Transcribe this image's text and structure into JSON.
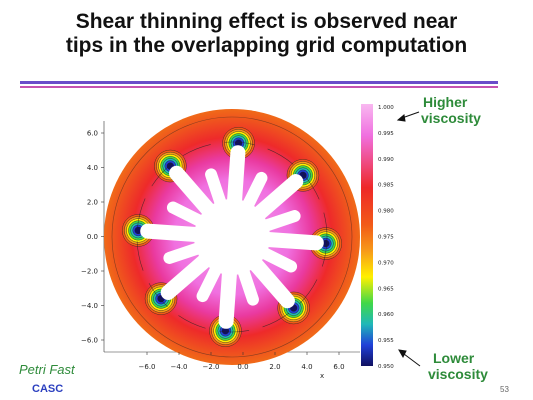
{
  "slide": {
    "title_line1": "Shear thinning effect is observed near",
    "title_line2": "tips in the overlapping grid computation",
    "annotation_high_line1": "Higher",
    "annotation_high_line2": "viscosity",
    "annotation_low_line1": "Lower",
    "annotation_low_line2": "viscosity",
    "author": "Petri Fast",
    "organization": "CASC",
    "page_number": "53"
  },
  "figure": {
    "xlabel": "x",
    "x_ticks": [
      "−6.0",
      "−4.0",
      "−2.0",
      "0.0",
      "2.0",
      "4.0",
      "6.0"
    ],
    "y_ticks": [
      "6.0",
      "4.0",
      "2.0",
      "0.0",
      "−2.0",
      "−4.0",
      "−6.0"
    ],
    "colorbar_ticks": [
      "1.000",
      "0.995",
      "0.990",
      "0.985",
      "0.980",
      "0.975",
      "0.970",
      "0.965",
      "0.960",
      "0.955",
      "0.950"
    ],
    "colormap": [
      "#f8b8f0",
      "#f070e0",
      "#ee2828",
      "#f25a18",
      "#f79a1a",
      "#fff000",
      "#40d848",
      "#20b8b8",
      "#2040d8",
      "#101060"
    ]
  },
  "colors": {
    "annotation_green": "#2e8b3a",
    "org_blue": "#2b3fbf",
    "rule_purple": "#6a4cc9",
    "rule_magenta": "#c552b0"
  }
}
